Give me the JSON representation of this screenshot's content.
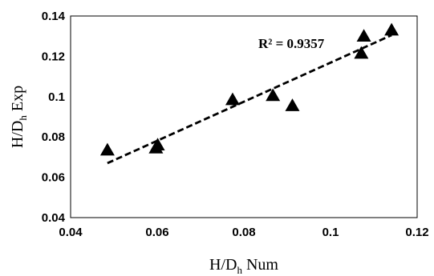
{
  "chart_data": {
    "type": "scatter",
    "title": "",
    "xlabel": {
      "main": "H/D",
      "sub": "h",
      "tail": " Num"
    },
    "ylabel": {
      "main": "H/D",
      "sub": "h",
      "tail": " Exp"
    },
    "xlim": [
      0.04,
      0.12
    ],
    "ylim": [
      0.04,
      0.14
    ],
    "xticks": [
      0.04,
      0.06,
      0.08,
      0.1,
      0.12
    ],
    "xtick_labels": [
      "0.04",
      "0.06",
      "0.08",
      "0.1",
      "0.12"
    ],
    "yticks": [
      0.04,
      0.06,
      0.08,
      0.1,
      0.12,
      0.14
    ],
    "ytick_labels": [
      "0.04",
      "0.06",
      "0.08",
      "0.1",
      "0.12",
      "0.14"
    ],
    "grid": false,
    "legend": "none",
    "marker": "triangle",
    "marker_color": "#000000",
    "points": [
      {
        "x": 0.0485,
        "y": 0.0735
      },
      {
        "x": 0.0597,
        "y": 0.0745
      },
      {
        "x": 0.0601,
        "y": 0.076
      },
      {
        "x": 0.0774,
        "y": 0.0985
      },
      {
        "x": 0.0867,
        "y": 0.1005
      },
      {
        "x": 0.0912,
        "y": 0.0955
      },
      {
        "x": 0.1071,
        "y": 0.1215
      },
      {
        "x": 0.1077,
        "y": 0.13
      },
      {
        "x": 0.1141,
        "y": 0.133
      }
    ],
    "trendline": {
      "style": "dashed",
      "color": "#000000",
      "x": [
        0.0485,
        0.1141
      ],
      "y": [
        0.067,
        0.1305
      ]
    },
    "annotation": "R² = 0.9357"
  }
}
